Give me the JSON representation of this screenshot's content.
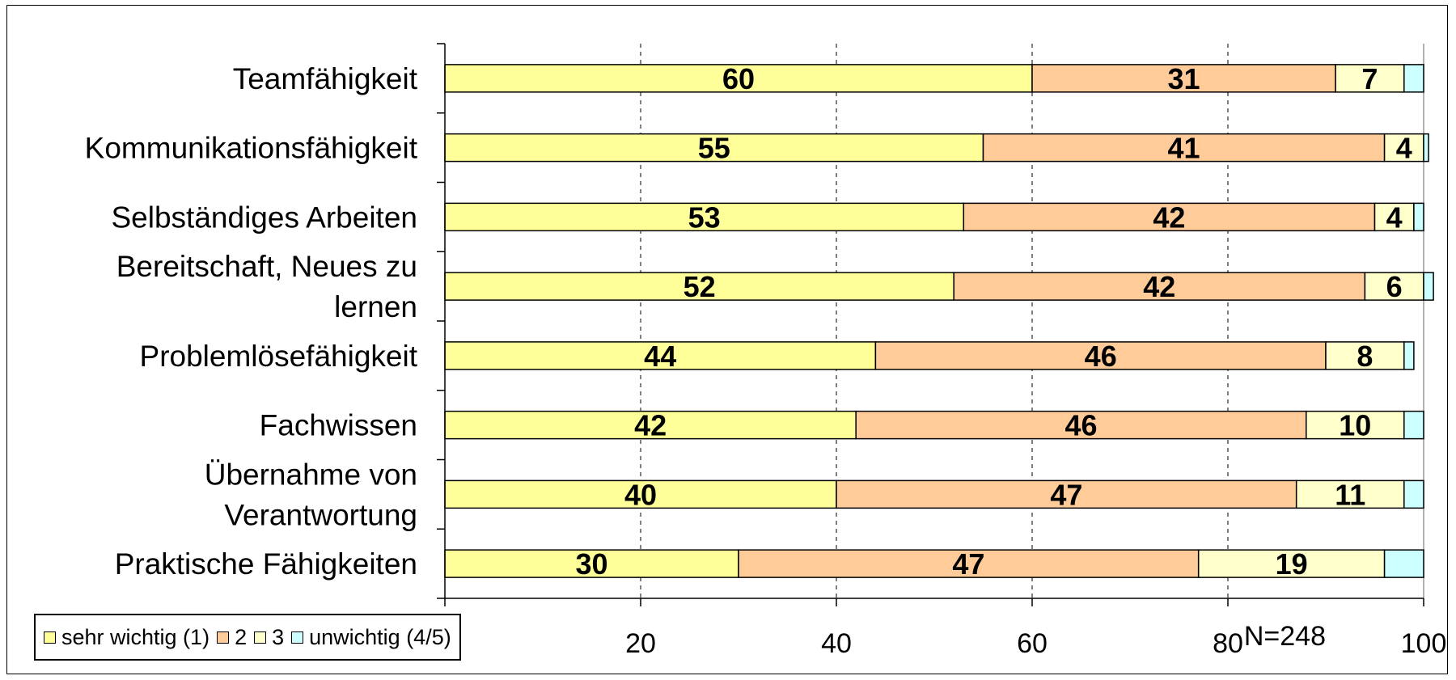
{
  "chart_data": {
    "type": "bar",
    "orientation": "horizontal",
    "stacked": true,
    "categories": [
      [
        "Teamfähigkeit"
      ],
      [
        "Kommunikationsfähigkeit"
      ],
      [
        "Selbständiges Arbeiten"
      ],
      [
        "Bereitschaft, Neues zu",
        "lernen"
      ],
      [
        "Problemlösefähigkeit"
      ],
      [
        "Fachwissen"
      ],
      [
        "Übernahme von",
        "Verantwortung"
      ],
      [
        "Praktische Fähigkeiten"
      ]
    ],
    "series": [
      {
        "name": "sehr wichtig (1)",
        "color": "#FFFF99",
        "values": [
          60,
          55,
          53,
          52,
          44,
          42,
          40,
          30
        ]
      },
      {
        "name": "2",
        "color": "#FFCC99",
        "values": [
          31,
          41,
          42,
          42,
          46,
          46,
          47,
          47
        ]
      },
      {
        "name": "3",
        "color": "#FFFFCC",
        "values": [
          7,
          4,
          4,
          6,
          8,
          10,
          11,
          19
        ]
      },
      {
        "name": "unwichtig (4/5)",
        "color": "#CCFFFF",
        "values": [
          2,
          0.5,
          1,
          1,
          1,
          2,
          2,
          4
        ]
      }
    ],
    "data_labels": [
      [
        "60",
        "31",
        "7",
        ""
      ],
      [
        "55",
        "41",
        "4",
        ""
      ],
      [
        "53",
        "42",
        "4",
        ""
      ],
      [
        "52",
        "42",
        "6",
        ""
      ],
      [
        "44",
        "46",
        "8",
        ""
      ],
      [
        "42",
        "46",
        "10",
        ""
      ],
      [
        "40",
        "47",
        "11",
        ""
      ],
      [
        "30",
        "47",
        "19",
        ""
      ]
    ],
    "xlim": [
      0,
      100
    ],
    "xticks": [
      0,
      20,
      40,
      60,
      80,
      100
    ],
    "xtick_labels": [
      "",
      "20",
      "40",
      "60",
      "80",
      "100"
    ],
    "grid": "vertical dashed",
    "legend_position": "bottom-left",
    "annotation": "N=248"
  }
}
